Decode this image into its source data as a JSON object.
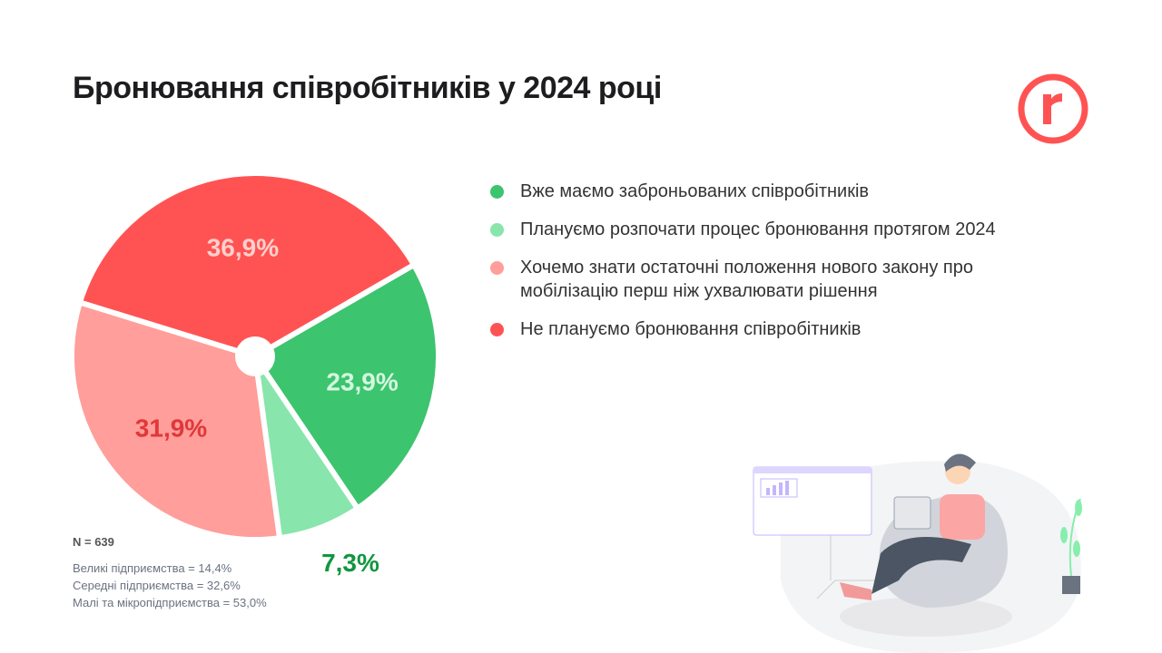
{
  "title": "Бронювання співробітників у 2024 році",
  "logo": {
    "letter": "r",
    "color": "#ff5353"
  },
  "chart_data": {
    "type": "pie",
    "title": "Бронювання співробітників у 2024 році",
    "start_angle_deg_clockwise_from_top": 60,
    "slices": [
      {
        "name": "Вже маємо заброньованих співробітників",
        "value": 23.9,
        "label": "23,9%",
        "color": "#3cc46e",
        "label_color": "#d4f7df"
      },
      {
        "name": "Плануємо розпочати процес бронювання протягом 2024",
        "value": 7.3,
        "label": "7,3%",
        "color": "#88e5ac",
        "label_color": "#12963f"
      },
      {
        "name": "Хочемо знати остаточні положення нового закону про мобілізацію перш ніж ухвалювати рішення",
        "value": 31.9,
        "label": "31,9%",
        "color": "#ff9e9a",
        "label_color": "#e0383a"
      },
      {
        "name": "Не плануємо бронювання співробітників",
        "value": 36.9,
        "label": "36,9%",
        "color": "#ff5353",
        "label_color": "#ffd0cc"
      }
    ],
    "legend_position": "right"
  },
  "notes": {
    "n": "N = 639",
    "lines": [
      "Великі підприємства = 14,4%",
      "Середні підприємства = 32,6%",
      "Малі та мікропідприємства = 53,0%"
    ]
  }
}
